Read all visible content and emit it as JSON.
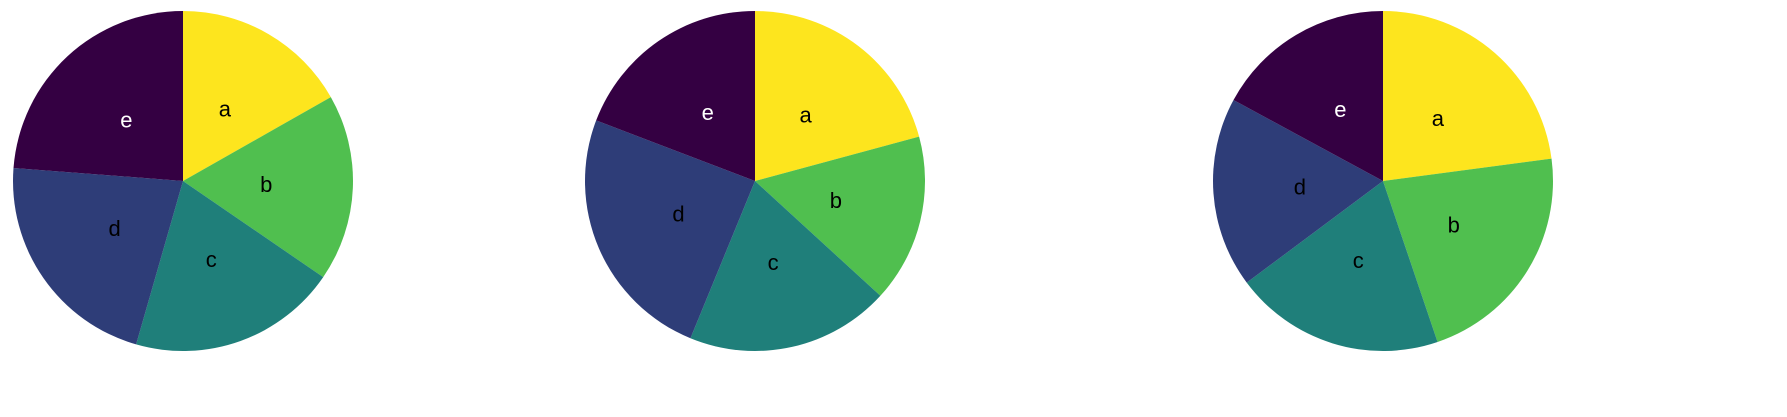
{
  "chart_data": [
    {
      "type": "pie",
      "start": "top",
      "direction": "clockwise",
      "categories": [
        "a",
        "b",
        "c",
        "d",
        "e"
      ],
      "values": [
        16.8,
        17.8,
        19.9,
        21.8,
        23.8
      ]
    },
    {
      "type": "pie",
      "start": "top",
      "direction": "clockwise",
      "categories": [
        "a",
        "b",
        "c",
        "d",
        "e"
      ],
      "values": [
        20.8,
        16.0,
        19.4,
        24.6,
        19.2
      ]
    },
    {
      "type": "pie",
      "start": "top",
      "direction": "clockwise",
      "categories": [
        "a",
        "b",
        "c",
        "d",
        "e"
      ],
      "values": [
        22.9,
        21.9,
        20.0,
        18.1,
        17.1
      ]
    }
  ],
  "colors": {
    "a": "#fde51e",
    "b": "#50bf4f",
    "c": "#1f7f7a",
    "d": "#2e3d78",
    "e": "#340042"
  },
  "label_colors": {
    "a": "#000000",
    "b": "#000000",
    "c": "#000000",
    "d": "#000000",
    "e": "#ffffff"
  }
}
